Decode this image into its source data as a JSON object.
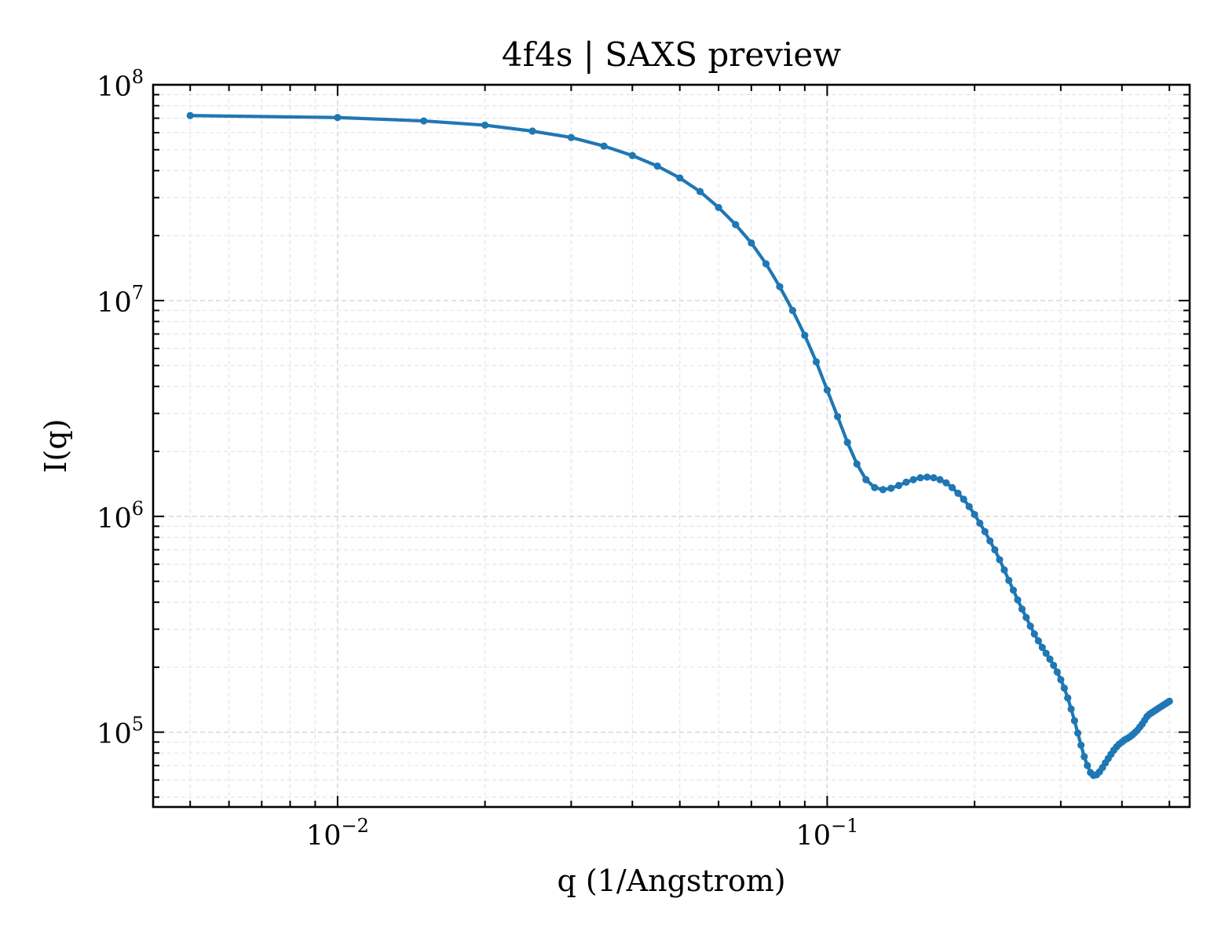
{
  "chart_data": {
    "type": "line",
    "title": "4f4s | SAXS preview",
    "xlabel": "q (1/Angstrom)",
    "ylabel": "I(q)",
    "xscale": "log",
    "yscale": "log",
    "xlim": [
      0.0042,
      0.55
    ],
    "ylim": [
      45000,
      100000000
    ],
    "xticks": [
      {
        "value": 0.01,
        "base": "10",
        "exp": "−2"
      },
      {
        "value": 0.1,
        "base": "10",
        "exp": "−1"
      }
    ],
    "yticks": [
      {
        "value": 100000,
        "base": "10",
        "exp": "5"
      },
      {
        "value": 1000000,
        "base": "10",
        "exp": "6"
      },
      {
        "value": 10000000,
        "base": "10",
        "exp": "7"
      },
      {
        "value": 100000000,
        "base": "10",
        "exp": "8"
      }
    ],
    "grid": true,
    "legend": "none",
    "color": "#1f77b4",
    "series": [
      {
        "x": [
          0.005,
          0.01,
          0.015,
          0.02,
          0.025,
          0.03,
          0.035,
          0.04,
          0.045,
          0.05,
          0.055,
          0.06,
          0.065,
          0.07,
          0.075,
          0.08,
          0.085,
          0.09,
          0.095,
          0.1,
          0.105,
          0.11,
          0.115,
          0.12,
          0.125,
          0.13,
          0.135,
          0.14,
          0.145,
          0.15,
          0.155,
          0.16,
          0.165,
          0.17,
          0.175,
          0.18,
          0.185,
          0.19,
          0.195,
          0.2,
          0.205,
          0.21,
          0.215,
          0.22,
          0.225,
          0.23,
          0.235,
          0.24,
          0.245,
          0.25,
          0.255,
          0.26,
          0.265,
          0.27,
          0.275,
          0.28,
          0.285,
          0.29,
          0.295,
          0.3,
          0.305,
          0.31,
          0.315,
          0.32,
          0.325,
          0.33,
          0.335,
          0.34,
          0.345,
          0.35,
          0.355,
          0.36,
          0.365,
          0.37,
          0.375,
          0.38,
          0.385,
          0.39,
          0.395,
          0.4,
          0.405,
          0.41,
          0.415,
          0.42,
          0.425,
          0.43,
          0.435,
          0.44,
          0.445,
          0.45,
          0.455,
          0.46,
          0.465,
          0.47,
          0.475,
          0.48,
          0.485,
          0.49,
          0.495,
          0.5
        ],
        "y": [
          72000000,
          70500000,
          68000000,
          65000000,
          61000000,
          57000000,
          52000000,
          47000000,
          42000000,
          37000000,
          32000000,
          27000000,
          22500000,
          18500000,
          14800000,
          11600000,
          9000000,
          6900000,
          5200000,
          3850000,
          2900000,
          2200000,
          1750000,
          1480000,
          1360000,
          1330000,
          1350000,
          1390000,
          1440000,
          1480000,
          1510000,
          1520000,
          1510000,
          1480000,
          1430000,
          1360000,
          1280000,
          1200000,
          1110000,
          1020000,
          930000,
          850000,
          770000,
          700000,
          630000,
          565000,
          505000,
          455000,
          410000,
          372000,
          340000,
          310000,
          285000,
          265000,
          247000,
          232000,
          218000,
          204000,
          190000,
          175000,
          160000,
          144000,
          128000,
          113000,
          99000,
          87000,
          77000,
          70000,
          65000,
          63000,
          63500,
          65500,
          68500,
          72000,
          75500,
          79000,
          82500,
          85500,
          88000,
          90000,
          92000,
          93500,
          95000,
          97000,
          99500,
          102000,
          105500,
          109000,
          113500,
          118000,
          121000,
          123000,
          125000,
          127000,
          129000,
          131000,
          133000,
          135000,
          137000,
          139000
        ]
      }
    ]
  }
}
